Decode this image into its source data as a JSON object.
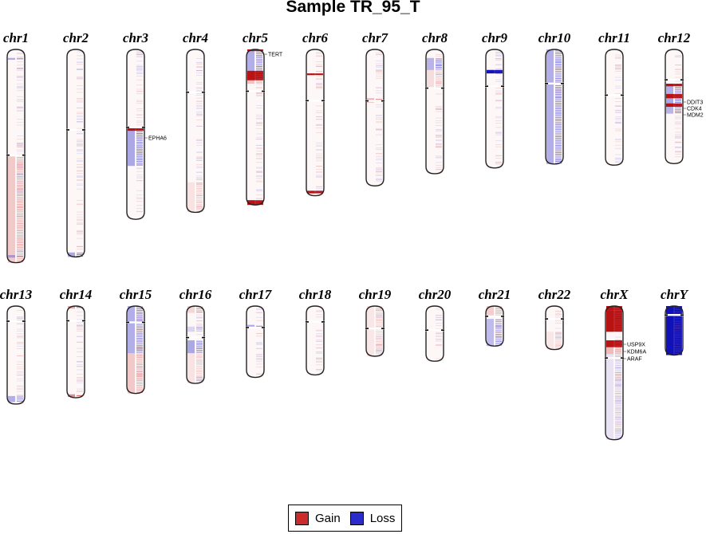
{
  "title": "Sample TR_95_T",
  "colors": {
    "gain": "#cc2b2b",
    "loss": "#2b2bcc",
    "gain_strong": "#b30000",
    "loss_strong": "#0000b3"
  },
  "legend": {
    "gain": "Gain",
    "loss": "Loss"
  },
  "chromosomes": [
    {
      "name": "chr1",
      "row": 1,
      "length": 248.9,
      "centromere": 123.4,
      "segments": [
        {
          "start": 0,
          "end": 123.4,
          "state": "neutral"
        },
        {
          "start": 10,
          "end": 12,
          "state": "loss",
          "level": 0.6
        },
        {
          "start": 125,
          "end": 248.9,
          "state": "gain",
          "level": 0.35
        },
        {
          "start": 240,
          "end": 243,
          "state": "loss",
          "level": 0.5
        }
      ]
    },
    {
      "name": "chr2",
      "row": 1,
      "length": 242.2,
      "centromere": 93.9,
      "segments": [
        {
          "start": 0,
          "end": 237,
          "state": "neutral"
        },
        {
          "start": 237,
          "end": 242.2,
          "state": "loss",
          "level": 0.6
        }
      ]
    },
    {
      "name": "chr3",
      "row": 1,
      "length": 198.3,
      "centromere": 90.9,
      "segments": [
        {
          "start": 0,
          "end": 90,
          "state": "neutral"
        },
        {
          "start": 90,
          "end": 95,
          "state": "gain",
          "level": 1.0
        },
        {
          "start": 95,
          "end": 136,
          "state": "loss",
          "level": 0.6
        },
        {
          "start": 136,
          "end": 198.3,
          "state": "neutral"
        }
      ],
      "genes": [
        "EPHA6"
      ]
    },
    {
      "name": "chr4",
      "row": 1,
      "length": 190.2,
      "centromere": 50.0,
      "segments": [
        {
          "start": 0,
          "end": 190.2,
          "state": "neutral"
        },
        {
          "start": 155,
          "end": 190,
          "state": "gain",
          "level": 0.15
        }
      ]
    },
    {
      "name": "chr5",
      "row": 1,
      "length": 181.5,
      "centromere": 48.8,
      "segments": [
        {
          "start": 0,
          "end": 2,
          "state": "gain",
          "level": 1.0
        },
        {
          "start": 2,
          "end": 25,
          "state": "loss",
          "level": 0.55
        },
        {
          "start": 25,
          "end": 36,
          "state": "gain",
          "level": 0.9
        },
        {
          "start": 36,
          "end": 40,
          "state": "gain",
          "level": 0.4
        },
        {
          "start": 176,
          "end": 181.5,
          "state": "gain",
          "level": 0.9
        }
      ],
      "genes": [
        "TERT"
      ]
    },
    {
      "name": "chr6",
      "row": 1,
      "length": 170.8,
      "centromere": 59.8,
      "segments": [
        {
          "start": 0,
          "end": 170.8,
          "state": "neutral"
        },
        {
          "start": 28,
          "end": 30,
          "state": "gain",
          "level": 0.9
        },
        {
          "start": 165,
          "end": 168,
          "state": "gain",
          "level": 0.9
        }
      ]
    },
    {
      "name": "chr7",
      "row": 1,
      "length": 159.3,
      "centromere": 60.1,
      "segments": [
        {
          "start": 0,
          "end": 159.3,
          "state": "neutral"
        },
        {
          "start": 57,
          "end": 62,
          "state": "gain",
          "level": 0.5
        }
      ]
    },
    {
      "name": "chr8",
      "row": 1,
      "length": 145.1,
      "centromere": 45.2,
      "segments": [
        {
          "start": 0,
          "end": 10,
          "state": "neutral"
        },
        {
          "start": 10,
          "end": 24,
          "state": "loss",
          "level": 0.5
        },
        {
          "start": 24,
          "end": 45,
          "state": "gain",
          "level": 0.2
        }
      ]
    },
    {
      "name": "chr9",
      "row": 1,
      "length": 138.4,
      "centromere": 43.0,
      "segments": [
        {
          "start": 0,
          "end": 138.4,
          "state": "neutral"
        },
        {
          "start": 24,
          "end": 28,
          "state": "loss",
          "level": 0.9
        }
      ]
    },
    {
      "name": "chr10",
      "row": 1,
      "length": 133.8,
      "centromere": 39.8,
      "segments": [
        {
          "start": 0,
          "end": 133.8,
          "state": "loss",
          "level": 0.55
        }
      ]
    },
    {
      "name": "chr11",
      "row": 1,
      "length": 135.1,
      "centromere": 53.4,
      "segments": [
        {
          "start": 0,
          "end": 135.1,
          "state": "neutral"
        }
      ]
    },
    {
      "name": "chr12",
      "row": 1,
      "length": 133.3,
      "centromere": 35.5,
      "segments": [
        {
          "start": 0,
          "end": 40,
          "state": "neutral"
        },
        {
          "start": 40,
          "end": 43,
          "state": "gain",
          "level": 1.0
        },
        {
          "start": 43,
          "end": 52,
          "state": "loss",
          "level": 0.55
        },
        {
          "start": 52,
          "end": 57,
          "state": "gain",
          "level": 1.0
        },
        {
          "start": 57,
          "end": 63,
          "state": "loss",
          "level": 0.6
        },
        {
          "start": 63,
          "end": 67,
          "state": "gain",
          "level": 1.0
        },
        {
          "start": 67,
          "end": 75,
          "state": "loss",
          "level": 0.5
        },
        {
          "start": 75,
          "end": 133.3,
          "state": "neutral"
        }
      ],
      "genes": [
        "DDIT3",
        "CDK4",
        "MDM2"
      ]
    },
    {
      "name": "chr13",
      "row": 2,
      "length": 114.4,
      "centromere": 17.7,
      "segments": [
        {
          "start": 0,
          "end": 114.4,
          "state": "neutral"
        },
        {
          "start": 105,
          "end": 112,
          "state": "loss",
          "level": 0.55
        }
      ]
    },
    {
      "name": "chr14",
      "row": 2,
      "length": 107.0,
      "centromere": 17.2,
      "segments": [
        {
          "start": 0,
          "end": 3,
          "state": "gain",
          "level": 0.6
        },
        {
          "start": 3,
          "end": 107,
          "state": "neutral"
        },
        {
          "start": 103,
          "end": 106,
          "state": "gain",
          "level": 0.8
        }
      ]
    },
    {
      "name": "chr15",
      "row": 2,
      "length": 102.0,
      "centromere": 19.0,
      "segments": [
        {
          "start": 0,
          "end": 55,
          "state": "loss",
          "level": 0.55
        },
        {
          "start": 55,
          "end": 102,
          "state": "gain",
          "level": 0.35
        }
      ]
    },
    {
      "name": "chr16",
      "row": 2,
      "length": 90.3,
      "centromere": 36.8,
      "segments": [
        {
          "start": 0,
          "end": 8,
          "state": "gain",
          "level": 0.25
        },
        {
          "start": 8,
          "end": 24,
          "state": "neutral"
        },
        {
          "start": 24,
          "end": 30,
          "state": "loss",
          "level": 0.25
        },
        {
          "start": 40,
          "end": 55,
          "state": "loss",
          "level": 0.6
        },
        {
          "start": 55,
          "end": 90.3,
          "state": "gain",
          "level": 0.15
        }
      ]
    },
    {
      "name": "chr17",
      "row": 2,
      "length": 83.3,
      "centromere": 25.1,
      "segments": [
        {
          "start": 0,
          "end": 83.3,
          "state": "neutral"
        },
        {
          "start": 22,
          "end": 25,
          "state": "loss",
          "level": 0.6
        }
      ]
    },
    {
      "name": "chr18",
      "row": 2,
      "length": 80.4,
      "centromere": 18.5,
      "segments": [
        {
          "start": 0,
          "end": 80.4,
          "state": "neutral"
        }
      ]
    },
    {
      "name": "chr19",
      "row": 2,
      "length": 58.6,
      "centromere": 26.2,
      "segments": [
        {
          "start": 0,
          "end": 58.6,
          "state": "gain",
          "level": 0.12
        }
      ]
    },
    {
      "name": "chr20",
      "row": 2,
      "length": 64.4,
      "centromere": 28.1,
      "segments": [
        {
          "start": 0,
          "end": 64.4,
          "state": "neutral"
        }
      ]
    },
    {
      "name": "chr21",
      "row": 2,
      "length": 46.7,
      "centromere": 12.0,
      "segments": [
        {
          "start": 0,
          "end": 12,
          "state": "gain",
          "level": 0.3
        },
        {
          "start": 15,
          "end": 46.7,
          "state": "loss",
          "level": 0.45
        }
      ]
    },
    {
      "name": "chr22",
      "row": 2,
      "length": 50.8,
      "centromere": 15.0,
      "segments": [
        {
          "start": 0,
          "end": 50.8,
          "state": "neutral"
        },
        {
          "start": 30,
          "end": 50,
          "state": "gain",
          "level": 0.12
        }
      ]
    },
    {
      "name": "chrX",
      "row": 2,
      "length": 156.0,
      "centromere": 60.6,
      "segments": [
        {
          "start": 0,
          "end": 5,
          "state": "gain",
          "level": 1.0
        },
        {
          "start": 5,
          "end": 30,
          "state": "gain",
          "level": 0.95
        },
        {
          "start": 30,
          "end": 40,
          "state": "neutral"
        },
        {
          "start": 40,
          "end": 48,
          "state": "gain",
          "level": 0.9
        },
        {
          "start": 48,
          "end": 56,
          "state": "gain",
          "level": 0.45
        },
        {
          "start": 56,
          "end": 156,
          "state": "loss",
          "level": 0.15
        }
      ],
      "genes": [
        "USP9X",
        "KDM6A",
        "ARAF"
      ]
    },
    {
      "name": "chrY",
      "row": 2,
      "length": 57.2,
      "centromere": 10.4,
      "segments": [
        {
          "start": 0,
          "end": 57.2,
          "state": "loss",
          "level": 1.0
        }
      ]
    }
  ]
}
